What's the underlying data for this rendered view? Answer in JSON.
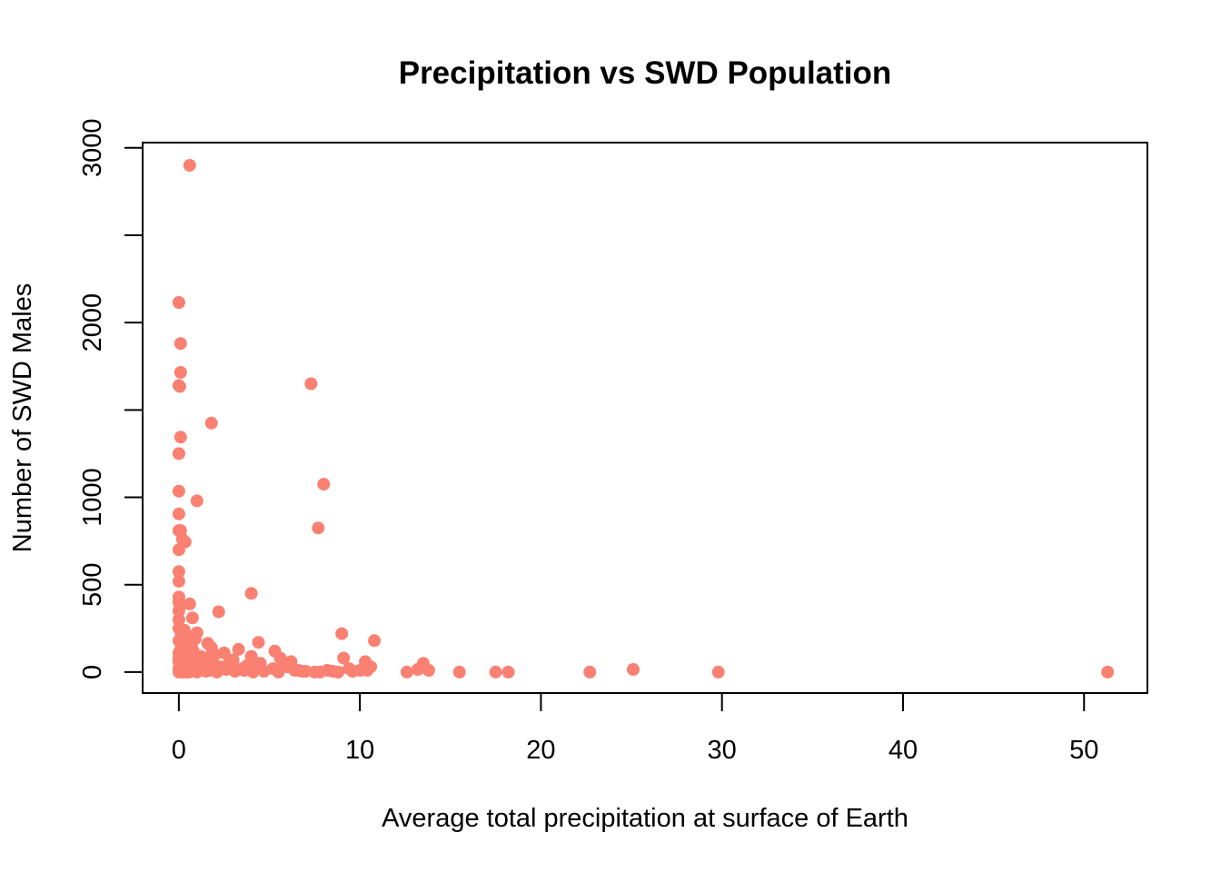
{
  "chart_data": {
    "type": "scatter",
    "title": "Precipitation vs SWD Population",
    "xlabel": "Average total precipitation at surface of Earth",
    "ylabel": "Number of SWD Males",
    "xlim": [
      -2,
      53.5
    ],
    "ylim": [
      -120,
      3030
    ],
    "x_ticks": [
      0,
      10,
      20,
      30,
      40,
      50
    ],
    "x_tick_labels": [
      "0",
      "10",
      "20",
      "30",
      "40",
      "50"
    ],
    "y_ticks": [
      0,
      500,
      1000,
      1500,
      2000,
      2500,
      3000
    ],
    "y_tick_labels": [
      "0",
      "500",
      "1000",
      "",
      "2000",
      "",
      "3000"
    ],
    "grid": false,
    "legend": "none",
    "point_color": "#FA8072",
    "series": [
      {
        "x": [
          0.6,
          0.0,
          0.1,
          0.1,
          0.0,
          0.05,
          7.3,
          1.8,
          0.1,
          0.0,
          8.0,
          0.0,
          1.0,
          0.0,
          0.1,
          7.7,
          0.0,
          0.2,
          0.35,
          0.0,
          0.0,
          0.0,
          4.0,
          0.0,
          0.0,
          0.1,
          0.6,
          2.2,
          0.0,
          0.0,
          0.3,
          0.75,
          0.0,
          0.1,
          0.2,
          0.4,
          0.0,
          0.9,
          1.0,
          0.2,
          0.3,
          0.5,
          0.7,
          0.1,
          0.0,
          0.4,
          1.6,
          1.8,
          2.0,
          0.8,
          1.2,
          0.0,
          0.3,
          0.6,
          2.5,
          3.3,
          1.5,
          1.9,
          0.2,
          0.5,
          0.9,
          1.4,
          2.8,
          3.0,
          4.4,
          5.3,
          4.0,
          5.6,
          6.2,
          9.0,
          10.8,
          9.1,
          10.3,
          13.5,
          3.8,
          4.5,
          4.2,
          5.8,
          6.0,
          1.2,
          2.3,
          2.9,
          3.5,
          6.6,
          7.0,
          7.5,
          8.2,
          8.5,
          9.4,
          10.0,
          10.6,
          12.6,
          13.8,
          15.5,
          17.5,
          18.2,
          22.7,
          25.1,
          29.8,
          51.3,
          0.0,
          0.2,
          0.4,
          0.7,
          1.0,
          1.3,
          1.7,
          2.1,
          2.6,
          3.1,
          3.6,
          4.1,
          4.7,
          5.2,
          5.5,
          6.4,
          6.8,
          7.8,
          8.8,
          9.6,
          10.4,
          13.2,
          0.0,
          0.1,
          0.3,
          0.5,
          0.8,
          1.1,
          1.5,
          0.0,
          0.15,
          0.25,
          0.45,
          0.55,
          0.0,
          0.1,
          0.2,
          0.3
        ],
        "y": [
          2900,
          2115,
          1880,
          1715,
          1640,
          1635,
          1650,
          1425,
          1345,
          1250,
          1075,
          1035,
          980,
          905,
          810,
          825,
          810,
          760,
          745,
          700,
          575,
          520,
          450,
          430,
          400,
          380,
          390,
          345,
          350,
          300,
          240,
          310,
          250,
          230,
          200,
          215,
          180,
          190,
          225,
          160,
          170,
          150,
          140,
          130,
          110,
          120,
          165,
          140,
          100,
          120,
          90,
          75,
          80,
          60,
          110,
          130,
          80,
          50,
          40,
          30,
          50,
          20,
          60,
          70,
          170,
          120,
          90,
          80,
          60,
          220,
          180,
          80,
          60,
          50,
          40,
          50,
          30,
          40,
          30,
          10,
          30,
          20,
          20,
          10,
          5,
          0,
          10,
          5,
          20,
          10,
          30,
          0,
          10,
          0,
          0,
          0,
          0,
          15,
          0,
          0,
          20,
          30,
          10,
          5,
          0,
          20,
          10,
          0,
          15,
          5,
          10,
          0,
          5,
          20,
          0,
          10,
          5,
          0,
          0,
          5,
          10,
          15,
          60,
          50,
          40,
          30,
          20,
          10,
          5,
          0,
          0,
          0,
          0,
          0,
          70,
          90,
          100,
          80
        ]
      }
    ]
  }
}
